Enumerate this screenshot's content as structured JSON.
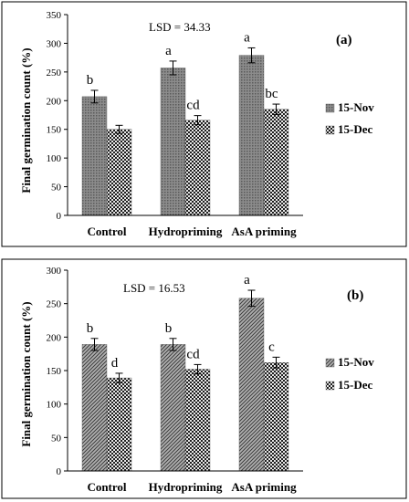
{
  "chart_data": [
    {
      "type": "bar",
      "panel_label": "(a)",
      "annotation": "LSD = 34.33",
      "ylabel": "Final germination count (%)",
      "ylim": [
        0,
        350
      ],
      "yticks": [
        0,
        50,
        100,
        150,
        200,
        250,
        300,
        350
      ],
      "categories": [
        "Control",
        "Hydropriming",
        "AsA priming"
      ],
      "legend_position": "right",
      "series": [
        {
          "name": "15-Nov",
          "pattern": "dots",
          "values": [
            207,
            257,
            279
          ],
          "errors": [
            11,
            12,
            13
          ],
          "letters": [
            "b",
            "a",
            "a"
          ]
        },
        {
          "name": "15-Dec",
          "pattern": "checks",
          "values": [
            150,
            166,
            185
          ],
          "errors": [
            7,
            8,
            9
          ],
          "letters": [
            "",
            "cd",
            "bc"
          ]
        }
      ]
    },
    {
      "type": "bar",
      "panel_label": "(b)",
      "annotation": "LSD = 16.53",
      "ylabel": "Final germination count (%)",
      "ylim": [
        0,
        300
      ],
      "yticks": [
        0,
        50,
        100,
        150,
        200,
        250,
        300
      ],
      "categories": [
        "Control",
        "Hydropriming",
        "AsA priming"
      ],
      "legend_position": "right",
      "series": [
        {
          "name": "15-Nov",
          "pattern": "diag",
          "values": [
            189,
            189,
            258
          ],
          "errors": [
            9,
            9,
            12
          ],
          "letters": [
            "b",
            "b",
            "a"
          ]
        },
        {
          "name": "15-Dec",
          "pattern": "checks",
          "values": [
            139,
            152,
            162
          ],
          "errors": [
            7,
            7,
            8
          ],
          "letters": [
            "d",
            "cd",
            "c"
          ]
        }
      ]
    }
  ]
}
